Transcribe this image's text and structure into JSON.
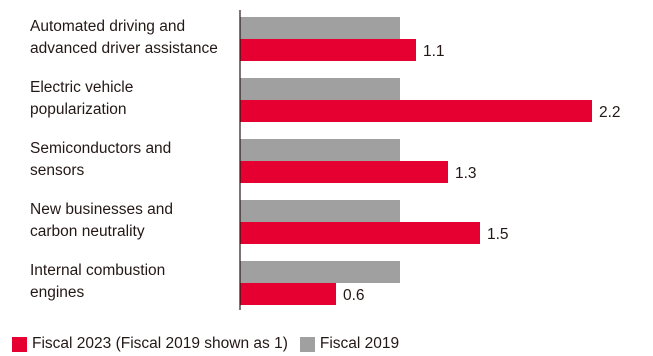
{
  "chart_data": {
    "type": "bar",
    "orientation": "horizontal",
    "categories": [
      [
        "Automated driving and",
        "advanced driver assistance"
      ],
      [
        "Electric vehicle",
        "popularization"
      ],
      [
        "Semiconductors and",
        "sensors"
      ],
      [
        "New businesses and",
        "carbon neutrality"
      ],
      [
        "Internal combustion",
        "engines"
      ]
    ],
    "series": [
      {
        "name": "Fiscal 2019",
        "color": "#a0a0a0",
        "values": [
          1,
          1,
          1,
          1,
          1
        ],
        "show_labels": false
      },
      {
        "name": "Fiscal 2023 (Fiscal 2019 shown as 1)",
        "color": "#e60032",
        "values": [
          1.1,
          2.2,
          1.3,
          1.5,
          0.6
        ],
        "show_labels": true
      }
    ],
    "value_labels": [
      "1.1",
      "2.2",
      "1.3",
      "1.5",
      "0.6"
    ],
    "xlim": [
      0,
      2.2
    ],
    "grid": false,
    "legend": {
      "placement": "bottom-left",
      "entries": [
        {
          "label": "Fiscal 2023 (Fiscal 2019 shown as 1)",
          "color": "#e60032"
        },
        {
          "label": "Fiscal 2019",
          "color": "#a0a0a0"
        }
      ]
    }
  }
}
